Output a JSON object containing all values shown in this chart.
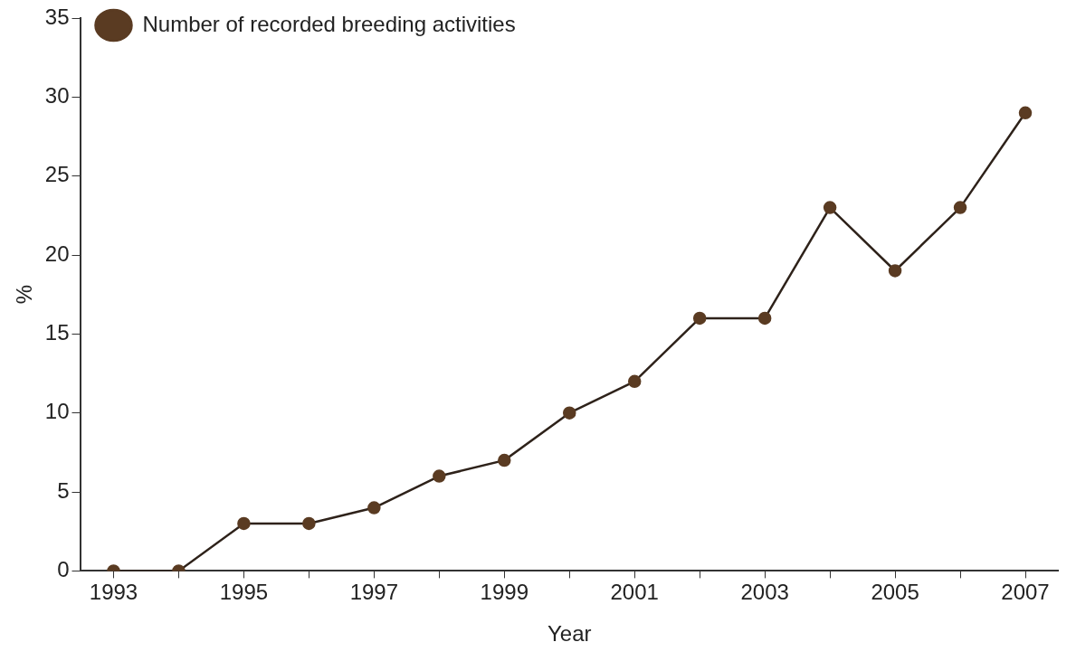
{
  "chart_data": {
    "type": "line",
    "xlabel": "Year",
    "ylabel": "%",
    "categories": [
      "1993",
      null,
      "1995",
      null,
      "1997",
      null,
      "1999",
      null,
      "2001",
      null,
      "2003",
      null,
      "2005",
      null,
      "2007"
    ],
    "series": [
      {
        "name": "Number of recorded breeding activities",
        "color": "#5a3b22",
        "values": [
          0,
          0,
          3,
          3,
          4,
          6,
          7,
          10,
          12,
          16,
          16,
          23,
          19,
          23,
          29
        ]
      }
    ],
    "ylim": [
      0,
      35
    ],
    "yticks": [
      0,
      5,
      10,
      15,
      20,
      25,
      30,
      35
    ],
    "grid": false,
    "legend": "top left",
    "marker": "circle",
    "line_style": "solid"
  }
}
